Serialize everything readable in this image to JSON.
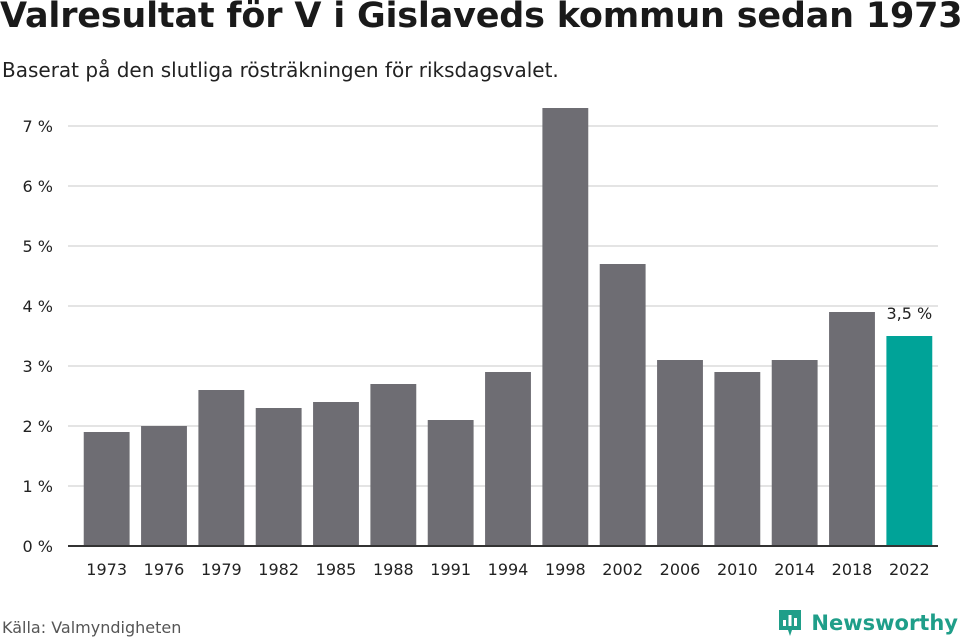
{
  "header": {
    "title": "Valresultat för V i Gislaveds kommun sedan 1973",
    "subtitle": "Baserat på den slutliga rösträkningen för riksdagsvalet."
  },
  "footer": {
    "source": "Källa: Valmyndigheten",
    "brand": "Newsworthy",
    "brand_icon": "newsworthy-logo-icon"
  },
  "colors": {
    "bar": "#6e6d73",
    "highlight": "#00a398",
    "grid": "#dcdcdc",
    "axis": "#333333",
    "brand": "#1f9e89"
  },
  "chart_data": {
    "type": "bar",
    "title": "Valresultat för V i Gislaveds kommun sedan 1973",
    "subtitle": "Baserat på den slutliga rösträkningen för riksdagsvalet.",
    "categories": [
      "1973",
      "1976",
      "1979",
      "1982",
      "1985",
      "1988",
      "1991",
      "1994",
      "1998",
      "2002",
      "2006",
      "2010",
      "2014",
      "2018",
      "2022"
    ],
    "values": [
      1.9,
      2.0,
      2.6,
      2.3,
      2.4,
      2.7,
      2.1,
      2.9,
      7.3,
      4.7,
      3.1,
      2.9,
      3.1,
      3.9,
      3.5
    ],
    "highlight_category": "2022",
    "data_labels": {
      "2022": "3,5 %"
    },
    "yticks": [
      0,
      1,
      2,
      3,
      4,
      5,
      6,
      7
    ],
    "ytick_labels": [
      "0 %",
      "1 %",
      "2 %",
      "3 %",
      "4 %",
      "5 %",
      "6 %",
      "7 %"
    ],
    "ylim": [
      0,
      7.5
    ],
    "xlabel": "",
    "ylabel": "",
    "grid": true,
    "legend": "none"
  }
}
